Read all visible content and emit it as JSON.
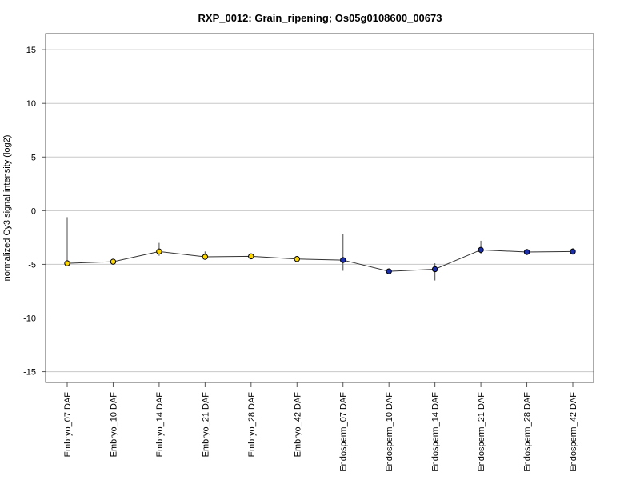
{
  "chart_data": {
    "type": "line",
    "title": "RXP_0012: Grain_ripening; Os05g0108600_00673",
    "xlabel": "",
    "ylabel": "normalized Cy3 signal intensity (log2)",
    "ylim": [
      -16,
      16.5
    ],
    "yticks": [
      15,
      10,
      5,
      0,
      -5,
      -10,
      -15
    ],
    "grid": true,
    "legend": "none",
    "categories": [
      "Embryo_07 DAF",
      "Embryo_10 DAF",
      "Embryo_14 DAF",
      "Embryo_21 DAF",
      "Embryo_28 DAF",
      "Embryo_42 DAF",
      "Endosperm_07 DAF",
      "Endosperm_10 DAF",
      "Endosperm_14 DAF",
      "Endosperm_21 DAF",
      "Endosperm_28 DAF",
      "Endosperm_42 DAF"
    ],
    "series": [
      {
        "values": [
          -4.9,
          -4.75,
          -3.8,
          -4.3,
          -4.25,
          -4.5,
          -4.6,
          -5.65,
          -5.45,
          -3.65,
          -3.85,
          -3.8
        ],
        "error_low": [
          -4.9,
          -4.75,
          -4.2,
          -4.5,
          -4.45,
          -4.8,
          -5.6,
          -5.8,
          -6.5,
          -4.0,
          -3.95,
          -4.1
        ],
        "error_high": [
          -0.6,
          -4.55,
          -3.0,
          -3.8,
          -4.05,
          -4.25,
          -2.2,
          -5.45,
          -4.9,
          -2.8,
          -3.7,
          -3.5
        ],
        "point_colors": [
          "#ffd700",
          "#ffd700",
          "#ffd700",
          "#ffd700",
          "#ffd700",
          "#ffd700",
          "#1c2fa8",
          "#1c2fa8",
          "#1c2fa8",
          "#1c2fa8",
          "#1c2fa8",
          "#1c2fa8"
        ]
      }
    ]
  }
}
